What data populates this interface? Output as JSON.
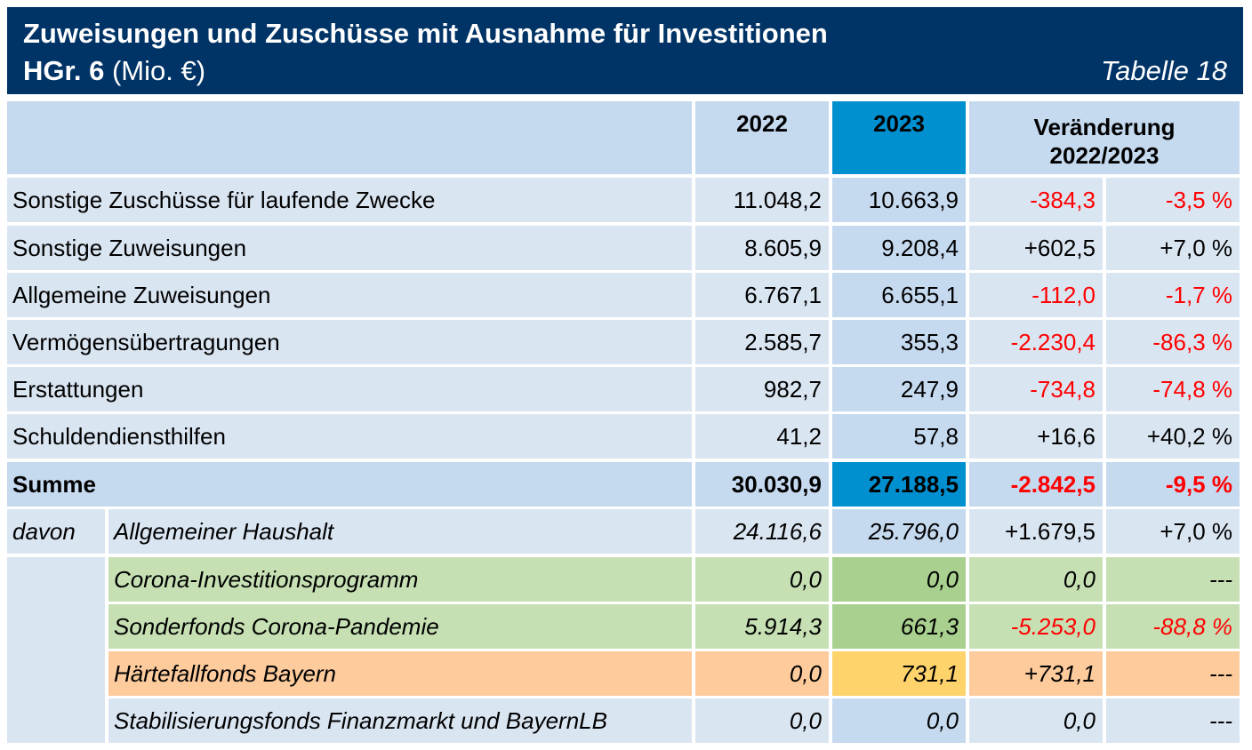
{
  "header": {
    "title": "Zuweisungen und Zuschüsse mit Ausnahme für Investitionen",
    "group": "HGr. 6",
    "unit": "(Mio. €)",
    "table_number": "Tabelle 18"
  },
  "table": {
    "columns": [
      "2022",
      "2023",
      [
        "Veränderung",
        "2022/2023"
      ]
    ],
    "rows": [
      {
        "label": "Sonstige Zuschüsse für laufende Zwecke",
        "cells": [
          "11.048,2",
          "10.663,9",
          "-384,3",
          "-3,5 %"
        ]
      },
      {
        "label": "Sonstige Zuweisungen",
        "cells": [
          "8.605,9",
          "9.208,4",
          "+602,5",
          "+7,0 %"
        ]
      },
      {
        "label": "Allgemeine Zuweisungen",
        "cells": [
          "6.767,1",
          "6.655,1",
          "-112,0",
          "-1,7 %"
        ]
      },
      {
        "label": "Vermögensübertragungen",
        "cells": [
          "2.585,7",
          "355,3",
          "-2.230,4",
          "-86,3 %"
        ]
      },
      {
        "label": "Erstattungen",
        "cells": [
          "982,7",
          "247,9",
          "-734,8",
          "-74,8 %"
        ]
      },
      {
        "label": "Schuldendiensthilfen",
        "cells": [
          "41,2",
          "57,8",
          "+16,6",
          "+40,2 %"
        ]
      }
    ],
    "sum": {
      "label": "Summe",
      "cells": [
        "30.030,9",
        "27.188,5",
        "-2.842,5",
        "-9,5 %"
      ]
    },
    "davon": {
      "label": "davon",
      "rows": [
        {
          "label": "Allgemeiner Haushalt",
          "cells": [
            "24.116,6",
            "25.796,0",
            "+1.679,5",
            "+7,0 %"
          ]
        },
        {
          "label": "Corona-Investitionsprogramm",
          "cells": [
            "0,0",
            "0,0",
            "0,0",
            "---"
          ]
        },
        {
          "label": "Sonderfonds Corona-Pandemie",
          "cells": [
            "5.914,3",
            "661,3",
            "-5.253,0",
            "-88,8 %"
          ]
        },
        {
          "label": "Härtefallfonds Bayern",
          "cells": [
            "0,0",
            "731,1",
            "+731,1",
            "---"
          ]
        },
        {
          "label": "Stabilisierungsfonds Finanzmarkt und BayernLB",
          "cells": [
            "0,0",
            "0,0",
            "0,0",
            "---"
          ]
        }
      ]
    }
  }
}
